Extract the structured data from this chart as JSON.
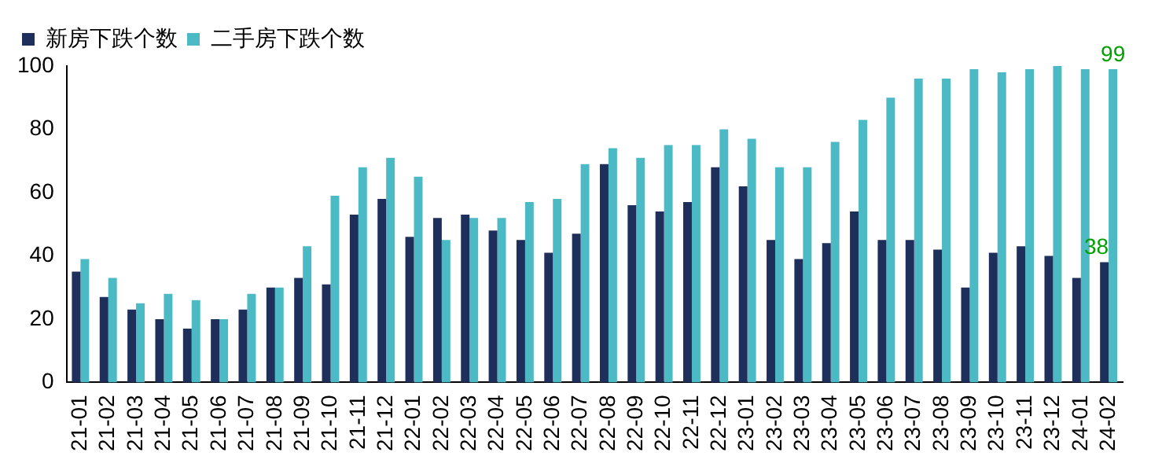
{
  "chart_data": {
    "type": "bar",
    "categories": [
      "21-01",
      "21-02",
      "21-03",
      "21-04",
      "21-05",
      "21-06",
      "21-07",
      "21-08",
      "21-09",
      "21-10",
      "21-11",
      "21-12",
      "22-01",
      "22-02",
      "22-03",
      "22-04",
      "22-05",
      "22-06",
      "22-07",
      "22-08",
      "22-09",
      "22-10",
      "22-11",
      "22-12",
      "23-01",
      "23-02",
      "23-03",
      "23-04",
      "23-05",
      "23-06",
      "23-07",
      "23-08",
      "23-09",
      "23-10",
      "23-11",
      "23-12",
      "24-01",
      "24-02"
    ],
    "series": [
      {
        "name": "新房下跌个数",
        "color": "#1f2f5c",
        "values": [
          35,
          27,
          23,
          20,
          17,
          20,
          23,
          30,
          33,
          31,
          53,
          58,
          46,
          52,
          53,
          48,
          45,
          41,
          47,
          69,
          56,
          54,
          57,
          68,
          62,
          45,
          39,
          44,
          54,
          45,
          45,
          42,
          30,
          41,
          43,
          40,
          33,
          38
        ]
      },
      {
        "name": "二手房下跌个数",
        "color": "#4bbac4",
        "values": [
          39,
          33,
          25,
          28,
          26,
          20,
          28,
          30,
          43,
          59,
          68,
          71,
          65,
          45,
          52,
          52,
          57,
          58,
          69,
          74,
          71,
          75,
          75,
          80,
          77,
          68,
          68,
          76,
          83,
          90,
          96,
          96,
          99,
          98,
          99,
          100,
          99,
          99
        ]
      }
    ],
    "ylim": [
      0,
      100
    ],
    "yticks": [
      0,
      20,
      40,
      60,
      80,
      100
    ],
    "grid": false,
    "legend": "top left",
    "annotations": [
      {
        "text": "99",
        "x": "24-02",
        "y": 99
      },
      {
        "text": "38",
        "x": "24-02",
        "y": 38
      }
    ]
  }
}
